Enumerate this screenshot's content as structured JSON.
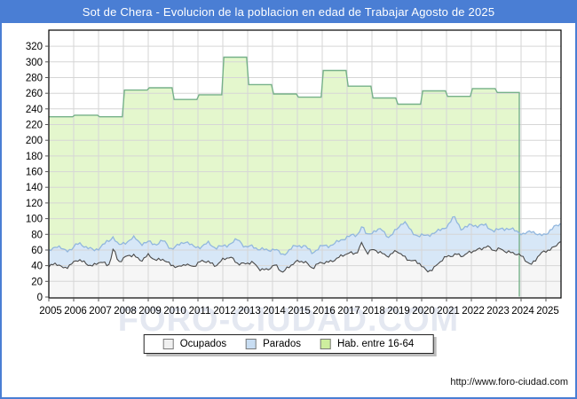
{
  "window": {
    "title": "Sot de Chera - Evolucion de la poblacion en edad de Trabajar Agosto de 2025",
    "title_bar_color": "#4a7ed4",
    "watermark": "FORO-CIUDAD.COM",
    "footer_url": "http://www.foro-ciudad.com"
  },
  "chart_data": {
    "type": "area",
    "title": "Sot de Chera - Evolucion de la poblacion en edad de Trabajar Agosto de 2025",
    "grid": true,
    "x_axis": {
      "labels": [
        "2005",
        "2006",
        "2007",
        "2008",
        "2009",
        "2010",
        "2011",
        "2012",
        "2013",
        "2014",
        "2015",
        "2016",
        "2017",
        "2018",
        "2019",
        "2020",
        "2021",
        "2022",
        "2023",
        "2024",
        "2025"
      ],
      "start": 2005.0,
      "data_end": 2025.58
    },
    "y_axis": {
      "labels": [
        "0",
        "20",
        "40",
        "60",
        "80",
        "100",
        "120",
        "140",
        "160",
        "180",
        "200",
        "220",
        "240",
        "260",
        "280",
        "300",
        "320"
      ],
      "min": 0,
      "max": 340,
      "tick_step": 20
    },
    "legend": {
      "position": "bottom-center",
      "items": [
        {
          "label": "Ocupados",
          "swatch_fill": "#f0f0f0"
        },
        {
          "label": "Parados",
          "swatch_fill": "#c8ddf2"
        },
        {
          "label": "Hab. entre 16-64",
          "swatch_fill": "#cdee9e"
        }
      ]
    },
    "series": [
      {
        "name": "Hab. entre 16-64",
        "type": "step-area-annual",
        "fill": "#e4f7cd",
        "stroke": "#76b189",
        "years": [
          2005,
          2006,
          2007,
          2008,
          2009,
          2010,
          2011,
          2012,
          2013,
          2014,
          2015,
          2016,
          2017,
          2018,
          2019,
          2020,
          2021,
          2022,
          2023
        ],
        "values": [
          230,
          232,
          230,
          264,
          267,
          252,
          258,
          306,
          271,
          259,
          255,
          289,
          269,
          254,
          246,
          263,
          256,
          266,
          261
        ],
        "ends_at": 2023.93
      },
      {
        "name": "Parados",
        "type": "area-monthly-stacked",
        "note": "banda apilada sobre Ocupados; la linea superior representa Ocupados + Parados",
        "fill": "#d7e7f7",
        "stroke": "#92b7de",
        "jitter": 2.8,
        "anchors_total": [
          [
            2005.0,
            58
          ],
          [
            2005.3,
            64
          ],
          [
            2005.6,
            60
          ],
          [
            2005.9,
            63
          ],
          [
            2006.2,
            67
          ],
          [
            2006.5,
            63
          ],
          [
            2006.8,
            61
          ],
          [
            2007.1,
            65
          ],
          [
            2007.4,
            69
          ],
          [
            2007.6,
            77
          ],
          [
            2007.8,
            67
          ],
          [
            2008.1,
            71
          ],
          [
            2008.4,
            74
          ],
          [
            2008.7,
            68
          ],
          [
            2009.0,
            72
          ],
          [
            2009.3,
            67
          ],
          [
            2009.6,
            70
          ],
          [
            2009.9,
            63
          ],
          [
            2010.2,
            67
          ],
          [
            2010.5,
            70
          ],
          [
            2010.8,
            63
          ],
          [
            2011.1,
            66
          ],
          [
            2011.4,
            69
          ],
          [
            2011.7,
            61
          ],
          [
            2012.0,
            65
          ],
          [
            2012.3,
            70
          ],
          [
            2012.6,
            72
          ],
          [
            2012.9,
            63
          ],
          [
            2013.2,
            66
          ],
          [
            2013.5,
            62
          ],
          [
            2013.8,
            57
          ],
          [
            2014.1,
            62
          ],
          [
            2014.4,
            55
          ],
          [
            2014.7,
            60
          ],
          [
            2015.0,
            64
          ],
          [
            2015.3,
            67
          ],
          [
            2015.6,
            57
          ],
          [
            2015.9,
            62
          ],
          [
            2016.2,
            65
          ],
          [
            2016.5,
            70
          ],
          [
            2016.8,
            73
          ],
          [
            2017.1,
            76
          ],
          [
            2017.4,
            80
          ],
          [
            2017.6,
            93
          ],
          [
            2017.8,
            78
          ],
          [
            2018.1,
            83
          ],
          [
            2018.4,
            86
          ],
          [
            2018.7,
            78
          ],
          [
            2019.0,
            85
          ],
          [
            2019.3,
            96
          ],
          [
            2019.6,
            84
          ],
          [
            2019.9,
            79
          ],
          [
            2020.2,
            76
          ],
          [
            2020.5,
            82
          ],
          [
            2020.8,
            88
          ],
          [
            2021.1,
            92
          ],
          [
            2021.3,
            101
          ],
          [
            2021.6,
            87
          ],
          [
            2022.0,
            94
          ],
          [
            2022.3,
            88
          ],
          [
            2022.6,
            92
          ],
          [
            2022.9,
            85
          ],
          [
            2023.2,
            88
          ],
          [
            2023.5,
            84
          ],
          [
            2023.8,
            87
          ],
          [
            2024.1,
            80
          ],
          [
            2024.4,
            84
          ],
          [
            2024.7,
            77
          ],
          [
            2025.0,
            83
          ],
          [
            2025.3,
            88
          ],
          [
            2025.58,
            92
          ]
        ]
      },
      {
        "name": "Ocupados",
        "type": "area-monthly",
        "fill": "#f6f6f6",
        "stroke": "#4a4a4a",
        "jitter": 2.3,
        "anchors": [
          [
            2005.0,
            37
          ],
          [
            2005.3,
            43
          ],
          [
            2005.6,
            38
          ],
          [
            2005.9,
            41
          ],
          [
            2006.2,
            47
          ],
          [
            2006.5,
            44
          ],
          [
            2006.8,
            40
          ],
          [
            2007.1,
            44
          ],
          [
            2007.4,
            40
          ],
          [
            2007.6,
            64
          ],
          [
            2007.8,
            44
          ],
          [
            2008.1,
            50
          ],
          [
            2008.4,
            55
          ],
          [
            2008.7,
            47
          ],
          [
            2009.0,
            52
          ],
          [
            2009.3,
            47
          ],
          [
            2009.6,
            50
          ],
          [
            2009.9,
            40
          ],
          [
            2010.2,
            37
          ],
          [
            2010.5,
            44
          ],
          [
            2010.8,
            38
          ],
          [
            2011.1,
            44
          ],
          [
            2011.4,
            47
          ],
          [
            2011.7,
            40
          ],
          [
            2012.0,
            46
          ],
          [
            2012.3,
            52
          ],
          [
            2012.6,
            44
          ],
          [
            2012.9,
            41
          ],
          [
            2013.2,
            44
          ],
          [
            2013.5,
            37
          ],
          [
            2013.8,
            34
          ],
          [
            2014.1,
            40
          ],
          [
            2014.4,
            33
          ],
          [
            2014.7,
            40
          ],
          [
            2015.0,
            44
          ],
          [
            2015.3,
            46
          ],
          [
            2015.6,
            38
          ],
          [
            2015.9,
            42
          ],
          [
            2016.2,
            44
          ],
          [
            2016.5,
            49
          ],
          [
            2016.8,
            52
          ],
          [
            2017.1,
            55
          ],
          [
            2017.4,
            58
          ],
          [
            2017.6,
            70
          ],
          [
            2017.8,
            55
          ],
          [
            2018.1,
            60
          ],
          [
            2018.4,
            57
          ],
          [
            2018.7,
            52
          ],
          [
            2019.0,
            58
          ],
          [
            2019.3,
            52
          ],
          [
            2019.6,
            47
          ],
          [
            2019.9,
            42
          ],
          [
            2020.2,
            33
          ],
          [
            2020.5,
            38
          ],
          [
            2020.8,
            46
          ],
          [
            2021.1,
            52
          ],
          [
            2021.4,
            56
          ],
          [
            2021.7,
            52
          ],
          [
            2022.0,
            57
          ],
          [
            2022.3,
            62
          ],
          [
            2022.6,
            65
          ],
          [
            2022.9,
            58
          ],
          [
            2023.2,
            62
          ],
          [
            2023.5,
            58
          ],
          [
            2023.8,
            54
          ],
          [
            2024.1,
            50
          ],
          [
            2024.4,
            42
          ],
          [
            2024.7,
            52
          ],
          [
            2025.0,
            58
          ],
          [
            2025.3,
            64
          ],
          [
            2025.58,
            72
          ]
        ]
      }
    ],
    "colors": {
      "grid": "#d6d6d6",
      "plot_border": "#000000",
      "tick": "#555555"
    }
  }
}
